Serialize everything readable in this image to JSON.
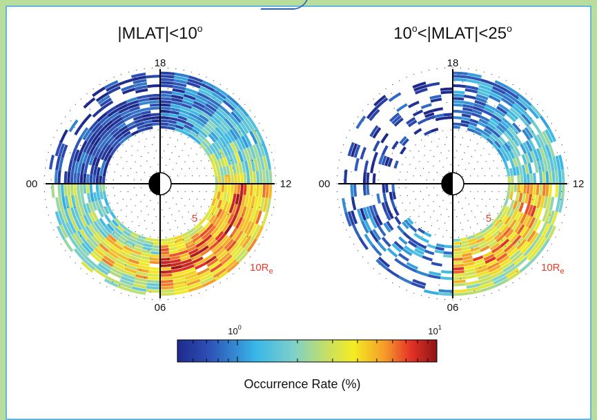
{
  "chart_data": [
    {
      "type": "heatmap",
      "title": "|MLAT|<10°",
      "projection": "polar (MLT dial)",
      "mlt_labels": {
        "top": "18",
        "left": "00",
        "right": "12",
        "bottom": "06"
      },
      "radial_labels": [
        "5",
        "10Re"
      ],
      "radial_range_Re": [
        5,
        12
      ],
      "colorscale": "jet, log scale",
      "description_by_sector": [
        {
          "mlt": "18-00",
          "level": "low (~0.6%) with many empty bins"
        },
        {
          "mlt": "00-06",
          "level": "mixed 1-5%, red patch near 02-03 MLT"
        },
        {
          "mlt": "06-12",
          "level": "high (4-8%), red bands at 7-10 Re"
        },
        {
          "mlt": "12-18",
          "level": "low near 18, rising toward 12 (2-5%)"
        }
      ]
    },
    {
      "type": "heatmap",
      "title": "10°<|MLAT|<25°",
      "projection": "polar (MLT dial)",
      "mlt_labels": {
        "top": "18",
        "left": "00",
        "right": "12",
        "bottom": "06"
      },
      "radial_labels": [
        "5",
        "10Re"
      ],
      "radial_range_Re": [
        5,
        12
      ],
      "colorscale": "jet, log scale",
      "description_by_sector": [
        {
          "mlt": "18-00",
          "level": "very sparse, low (~0.6%)"
        },
        {
          "mlt": "00-06",
          "level": "sparse, low to moderate (0.6-2%)"
        },
        {
          "mlt": "06-12",
          "level": "high (3-8%), red near 08-11 MLT"
        },
        {
          "mlt": "12-18",
          "level": "moderate (1-4%)"
        }
      ]
    }
  ],
  "labels": {
    "left_title": "|MLAT|<10",
    "right_title_a": "10",
    "right_title_b": "<|MLAT|<25",
    "h18": "18",
    "h00": "00",
    "h12": "12",
    "h06": "06",
    "r5": "5",
    "r10": "10R",
    "r10sub": "e"
  },
  "colorbar": {
    "label": "Occurrence Rate (%)",
    "tick_min": "10",
    "tick_min_exp": "0",
    "tick_max": "10",
    "tick_max_exp": "1",
    "scale": "log",
    "range": [
      0.5,
      10
    ]
  }
}
